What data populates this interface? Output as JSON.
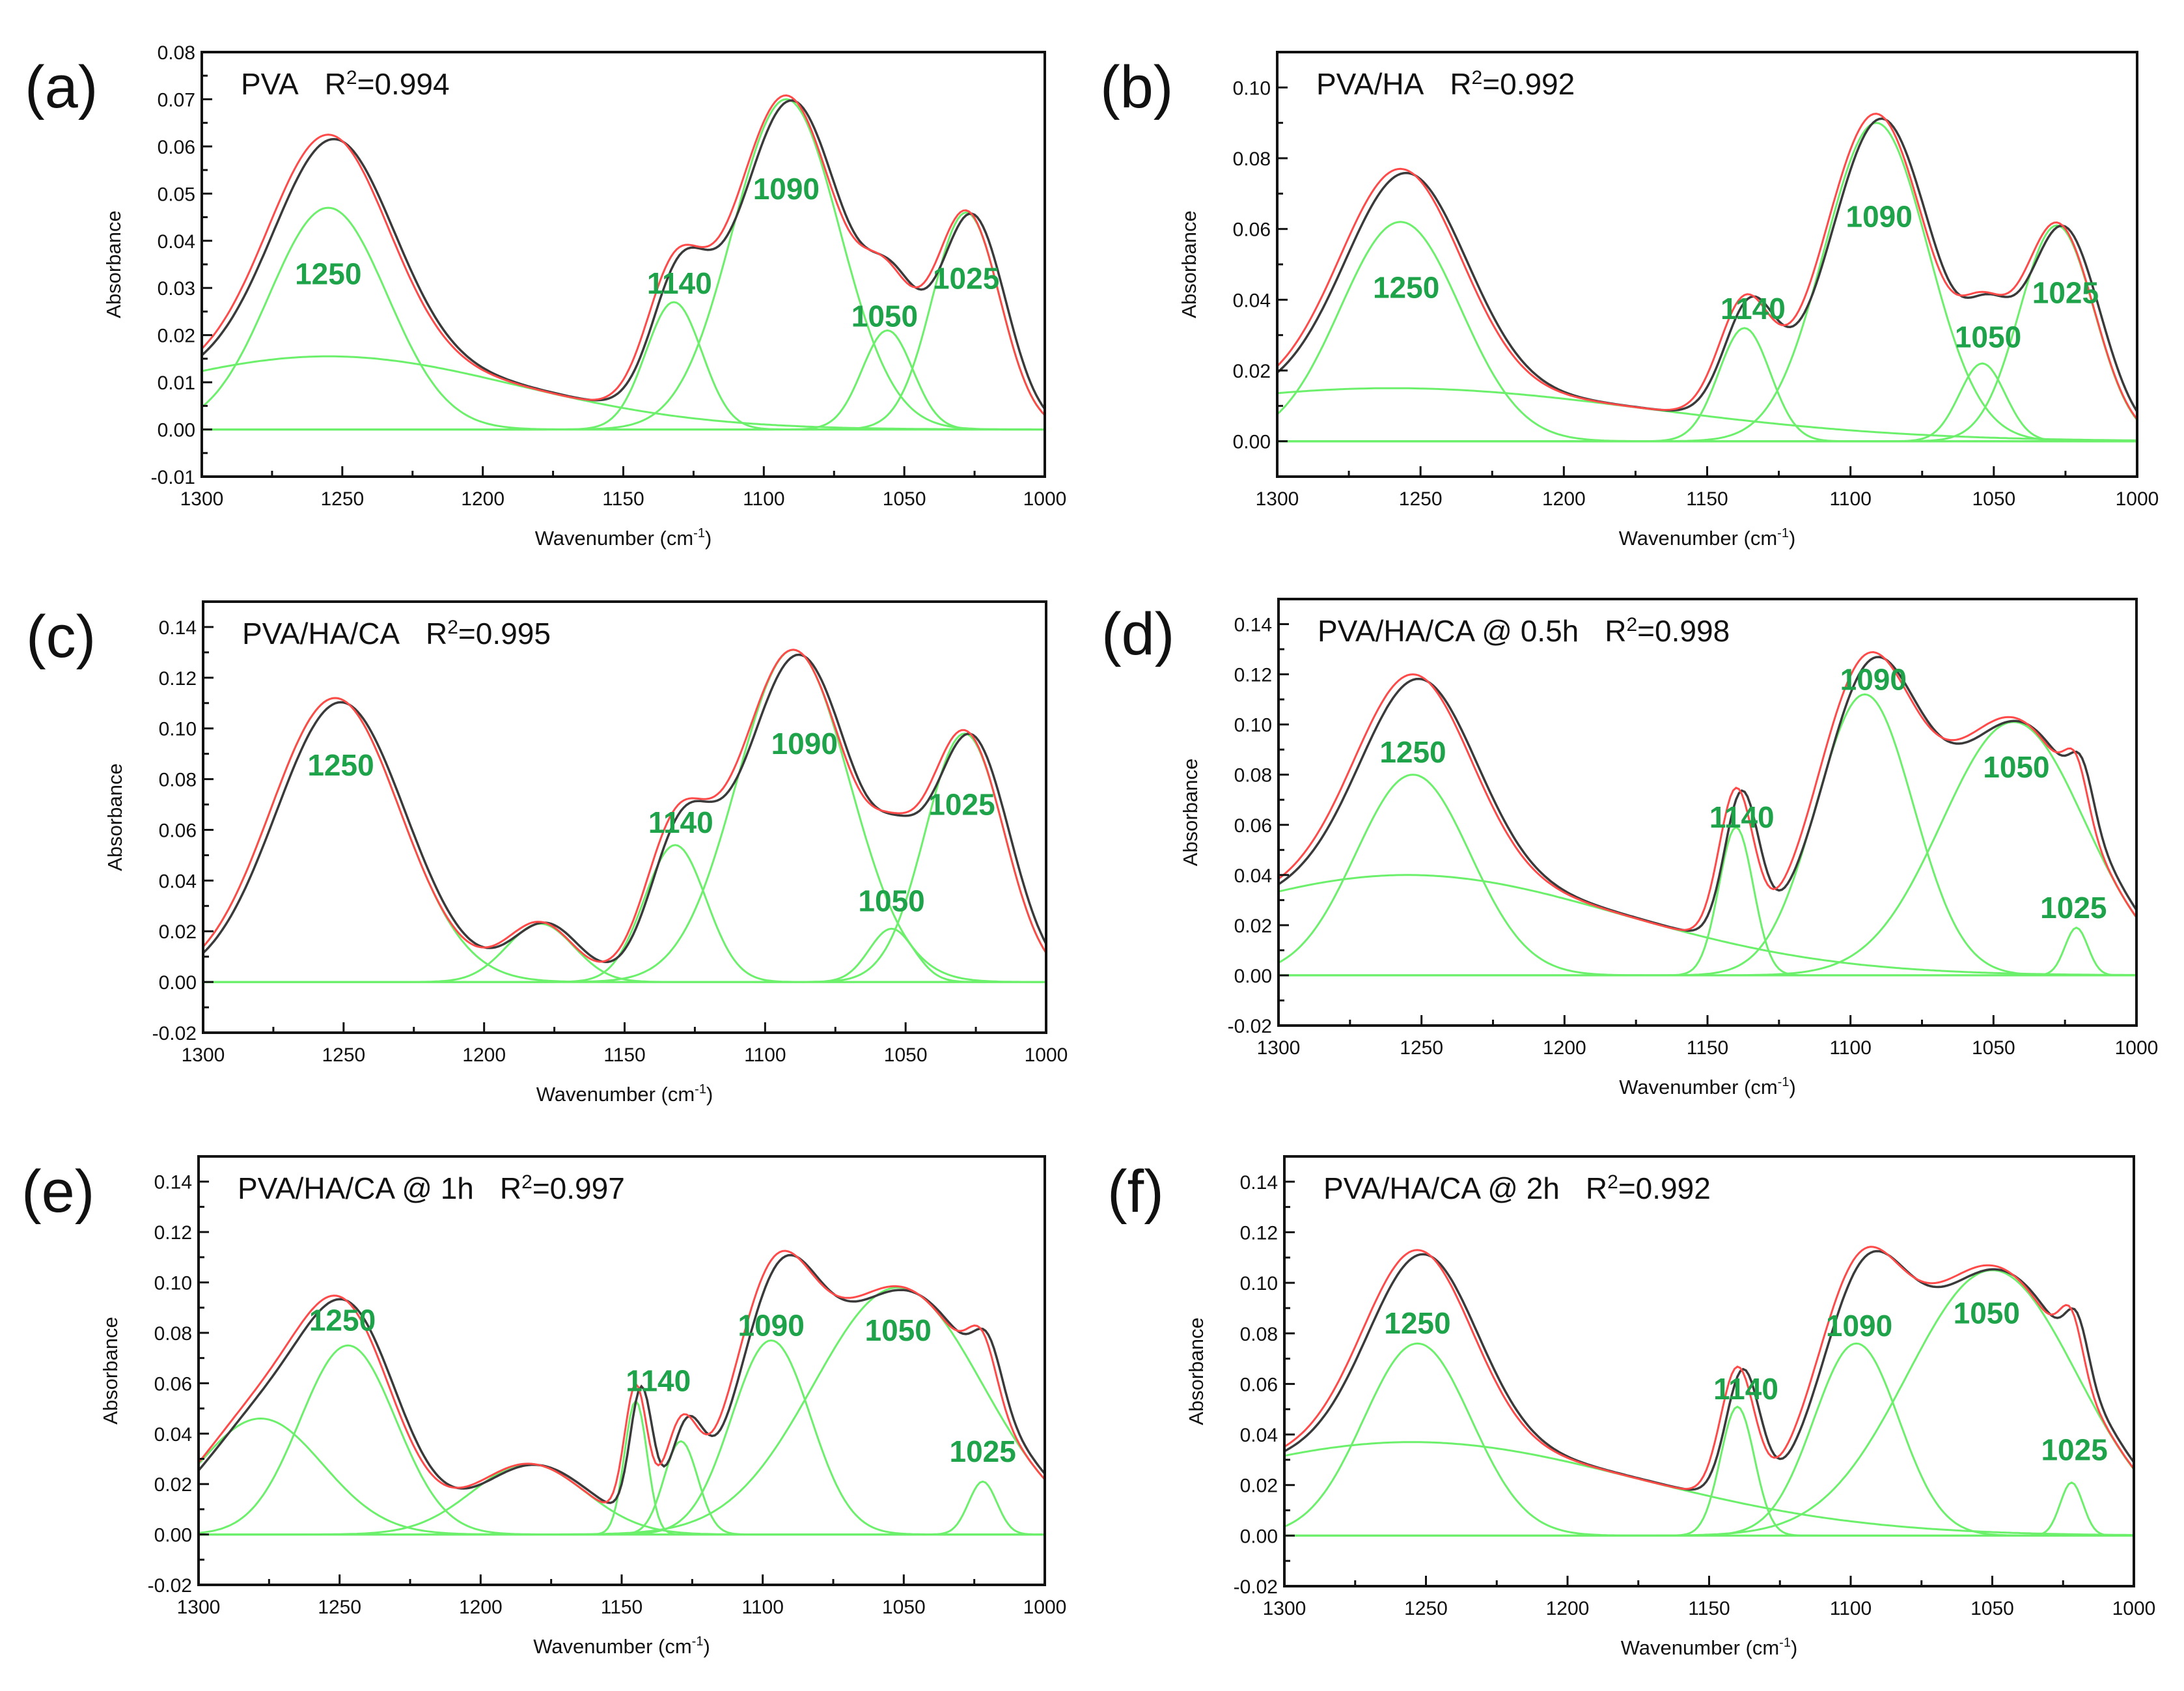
{
  "colors": {
    "component": "#6cf06c",
    "fit": "#ff4a4a",
    "measured": "#3a3a3a",
    "peak_label": "#1fa34a",
    "axis": "#111111"
  },
  "chart_data": [
    {
      "type": "line",
      "panel": "(a)",
      "sample": "PVA",
      "r2_prefix": "R",
      "r2_exp": "2",
      "r2_value": "=0.994",
      "xlabel": "Wavenumber (cm",
      "xlabel_exp": "-1",
      "xlabel_end": ")",
      "ylabel": "Absorbance",
      "xlim": [
        1300,
        1000
      ],
      "ylim": [
        -0.01,
        0.08
      ],
      "xticks": [
        "1300",
        "1250",
        "1200",
        "1150",
        "1100",
        "1050",
        "1000"
      ],
      "yticks": [
        "-0.01",
        "0.00",
        "0.01",
        "0.02",
        "0.03",
        "0.04",
        "0.05",
        "0.06",
        "0.07",
        "0.08"
      ],
      "components": [
        {
          "center": 1255,
          "amp": 0.0155,
          "sigma": 67
        },
        {
          "center": 1255,
          "amp": 0.047,
          "sigma": 21
        },
        {
          "center": 1132,
          "amp": 0.027,
          "sigma": 10
        },
        {
          "center": 1092,
          "amp": 0.07,
          "sigma": 19
        },
        {
          "center": 1056,
          "amp": 0.021,
          "sigma": 9
        },
        {
          "center": 1028,
          "amp": 0.046,
          "sigma": 12
        }
      ],
      "peak_labels": [
        {
          "text": "1250",
          "x": 1255,
          "y": 0.033
        },
        {
          "text": "1140",
          "x": 1130,
          "y": 0.031
        },
        {
          "text": "1090",
          "x": 1092,
          "y": 0.051
        },
        {
          "text": "1050",
          "x": 1057,
          "y": 0.024
        },
        {
          "text": "1025",
          "x": 1028,
          "y": 0.032
        }
      ]
    },
    {
      "type": "line",
      "panel": "(b)",
      "sample": "PVA/HA",
      "r2_prefix": "R",
      "r2_exp": "2",
      "r2_value": "=0.992",
      "xlabel": "Wavenumber (cm",
      "xlabel_exp": "-1",
      "xlabel_end": ")",
      "ylabel": "Absorbance",
      "xlim": [
        1300,
        1000
      ],
      "ylim": [
        -0.01,
        0.11
      ],
      "xticks": [
        "1300",
        "1250",
        "1200",
        "1150",
        "1100",
        "1050",
        "1000"
      ],
      "yticks": [
        "0.00",
        "0.02",
        "0.04",
        "0.06",
        "0.08",
        "0.10"
      ],
      "components": [
        {
          "center": 1260,
          "amp": 0.015,
          "sigma": 90
        },
        {
          "center": 1257,
          "amp": 0.062,
          "sigma": 21
        },
        {
          "center": 1137,
          "amp": 0.032,
          "sigma": 9
        },
        {
          "center": 1091,
          "amp": 0.09,
          "sigma": 18
        },
        {
          "center": 1054,
          "amp": 0.022,
          "sigma": 8
        },
        {
          "center": 1028,
          "amp": 0.061,
          "sigma": 13
        }
      ],
      "peak_labels": [
        {
          "text": "1250",
          "x": 1255,
          "y": 0.0435
        },
        {
          "text": "1140",
          "x": 1134,
          "y": 0.0375
        },
        {
          "text": "1090",
          "x": 1090,
          "y": 0.0635
        },
        {
          "text": "1050",
          "x": 1052,
          "y": 0.0295
        },
        {
          "text": "1025",
          "x": 1025,
          "y": 0.042
        }
      ]
    },
    {
      "type": "line",
      "panel": "(c)",
      "sample": "PVA/HA/CA",
      "r2_prefix": "R",
      "r2_exp": "2",
      "r2_value": "=0.995",
      "xlabel": "Wavenumber (cm",
      "xlabel_exp": "-1",
      "xlabel_end": ")",
      "ylabel": "Absorbance",
      "xlim": [
        1300,
        1000
      ],
      "ylim": [
        -0.02,
        0.15
      ],
      "xticks": [
        "1300",
        "1250",
        "1200",
        "1150",
        "1100",
        "1050",
        "1000"
      ],
      "yticks": [
        "-0.02",
        "0.00",
        "0.02",
        "0.04",
        "0.06",
        "0.08",
        "0.10",
        "0.12",
        "0.14"
      ],
      "components": [
        {
          "center": 1253,
          "amp": 0.112,
          "sigma": 23
        },
        {
          "center": 1180,
          "amp": 0.023,
          "sigma": 12
        },
        {
          "center": 1132,
          "amp": 0.054,
          "sigma": 11
        },
        {
          "center": 1090,
          "amp": 0.131,
          "sigma": 20
        },
        {
          "center": 1055,
          "amp": 0.021,
          "sigma": 8
        },
        {
          "center": 1029,
          "amp": 0.098,
          "sigma": 14
        }
      ],
      "peak_labels": [
        {
          "text": "1250",
          "x": 1251,
          "y": 0.0855
        },
        {
          "text": "1140",
          "x": 1130,
          "y": 0.063
        },
        {
          "text": "1090",
          "x": 1086,
          "y": 0.094
        },
        {
          "text": "1050",
          "x": 1055,
          "y": 0.032
        },
        {
          "text": "1025",
          "x": 1030,
          "y": 0.07
        }
      ]
    },
    {
      "type": "line",
      "panel": "(d)",
      "sample": "PVA/HA/CA @ 0.5h",
      "r2_prefix": "R",
      "r2_exp": "2",
      "r2_value": "=0.998",
      "xlabel": "Wavenumber (cm",
      "xlabel_exp": "-1",
      "xlabel_end": ")",
      "ylabel": "Absorbance",
      "xlim": [
        1300,
        1000
      ],
      "ylim": [
        -0.02,
        0.15
      ],
      "xticks": [
        "1300",
        "1250",
        "1200",
        "1150",
        "1100",
        "1050",
        "1000"
      ],
      "yticks": [
        "-0.02",
        "0.00",
        "0.02",
        "0.04",
        "0.06",
        "0.08",
        "0.10",
        "0.12",
        "0.14"
      ],
      "components": [
        {
          "center": 1255,
          "amp": 0.04,
          "sigma": 75
        },
        {
          "center": 1253,
          "amp": 0.08,
          "sigma": 20
        },
        {
          "center": 1140,
          "amp": 0.059,
          "sigma": 6
        },
        {
          "center": 1095,
          "amp": 0.112,
          "sigma": 17
        },
        {
          "center": 1043,
          "amp": 0.101,
          "sigma": 25
        },
        {
          "center": 1021,
          "amp": 0.019,
          "sigma": 4
        }
      ],
      "peak_labels": [
        {
          "text": "1250",
          "x": 1253,
          "y": 0.089
        },
        {
          "text": "1140",
          "x": 1138,
          "y": 0.063
        },
        {
          "text": "1090",
          "x": 1092,
          "y": 0.118
        },
        {
          "text": "1050",
          "x": 1042,
          "y": 0.083
        },
        {
          "text": "1025",
          "x": 1022,
          "y": 0.027
        }
      ]
    },
    {
      "type": "line",
      "panel": "(e)",
      "sample": "PVA/HA/CA @ 1h",
      "r2_prefix": "R",
      "r2_exp": "2",
      "r2_value": "=0.997",
      "xlabel": "Wavenumber (cm",
      "xlabel_exp": "-1",
      "xlabel_end": ")",
      "ylabel": "Absorbance",
      "xlim": [
        1300,
        1000
      ],
      "ylim": [
        -0.02,
        0.15
      ],
      "xticks": [
        "1300",
        "1250",
        "1200",
        "1150",
        "1100",
        "1050",
        "1000"
      ],
      "yticks": [
        "-0.02",
        "0.00",
        "0.02",
        "0.04",
        "0.06",
        "0.08",
        "0.10",
        "0.12",
        "0.14"
      ],
      "components": [
        {
          "center": 1278,
          "amp": 0.046,
          "sigma": 22
        },
        {
          "center": 1247,
          "amp": 0.075,
          "sigma": 17
        },
        {
          "center": 1183,
          "amp": 0.028,
          "sigma": 20
        },
        {
          "center": 1145,
          "amp": 0.053,
          "sigma": 4
        },
        {
          "center": 1129,
          "amp": 0.037,
          "sigma": 6
        },
        {
          "center": 1097,
          "amp": 0.077,
          "sigma": 14
        },
        {
          "center": 1052,
          "amp": 0.098,
          "sigma": 30
        },
        {
          "center": 1022,
          "amp": 0.021,
          "sigma": 5
        }
      ],
      "peak_labels": [
        {
          "text": "1250",
          "x": 1249,
          "y": 0.085
        },
        {
          "text": "1140",
          "x": 1137,
          "y": 0.061
        },
        {
          "text": "1090",
          "x": 1097,
          "y": 0.083
        },
        {
          "text": "1050",
          "x": 1052,
          "y": 0.081
        },
        {
          "text": "1025",
          "x": 1022,
          "y": 0.033
        }
      ]
    },
    {
      "type": "line",
      "panel": "(f)",
      "sample": "PVA/HA/CA @ 2h",
      "r2_prefix": "R",
      "r2_exp": "2",
      "r2_value": "=0.992",
      "xlabel": "Wavenumber (cm",
      "xlabel_exp": "-1",
      "xlabel_end": ")",
      "ylabel": "Absorbance",
      "xlim": [
        1300,
        1000
      ],
      "ylim": [
        -0.02,
        0.15
      ],
      "xticks": [
        "1300",
        "1250",
        "1200",
        "1150",
        "1100",
        "1050",
        "1000"
      ],
      "yticks": [
        "-0.02",
        "0.00",
        "0.02",
        "0.04",
        "0.06",
        "0.08",
        "0.10",
        "0.12",
        "0.14"
      ],
      "components": [
        {
          "center": 1255,
          "amp": 0.037,
          "sigma": 80
        },
        {
          "center": 1253,
          "amp": 0.076,
          "sigma": 19
        },
        {
          "center": 1140,
          "amp": 0.051,
          "sigma": 6
        },
        {
          "center": 1098,
          "amp": 0.076,
          "sigma": 15
        },
        {
          "center": 1050,
          "amp": 0.105,
          "sigma": 30
        },
        {
          "center": 1022,
          "amp": 0.021,
          "sigma": 4
        }
      ],
      "peak_labels": [
        {
          "text": "1250",
          "x": 1253,
          "y": 0.084
        },
        {
          "text": "1140",
          "x": 1137,
          "y": 0.058
        },
        {
          "text": "1090",
          "x": 1097,
          "y": 0.083
        },
        {
          "text": "1050",
          "x": 1052,
          "y": 0.088
        },
        {
          "text": "1025",
          "x": 1021,
          "y": 0.034
        }
      ]
    }
  ]
}
